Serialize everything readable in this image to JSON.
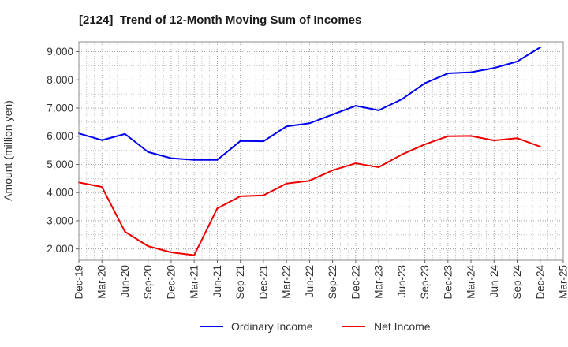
{
  "chart_data": {
    "type": "line",
    "title": "[2124]  Trend of 12-Month Moving Sum of Incomes",
    "ylabel": "Amount (million yen)",
    "categories": [
      "Dec-19",
      "Mar-20",
      "Jun-20",
      "Sep-20",
      "Dec-20",
      "Mar-21",
      "Jun-21",
      "Sep-21",
      "Dec-21",
      "Mar-22",
      "Jun-22",
      "Sep-22",
      "Dec-22",
      "Mar-23",
      "Jun-23",
      "Sep-23",
      "Dec-23",
      "Mar-24",
      "Jun-24",
      "Sep-24",
      "Dec-24",
      "Mar-25"
    ],
    "y_ticks": [
      2000,
      3000,
      4000,
      5000,
      6000,
      7000,
      8000,
      9000
    ],
    "y_tick_labels": [
      "2,000",
      "3,000",
      "4,000",
      "5,000",
      "6,000",
      "7,000",
      "8,000",
      "9,000"
    ],
    "ylim": [
      1600,
      9350
    ],
    "grid": true,
    "legend_position": "bottom-center",
    "series": [
      {
        "name": "Ordinary Income",
        "color": "#0000ee",
        "values": [
          6100,
          5860,
          6080,
          5440,
          5220,
          5160,
          5160,
          5830,
          5820,
          6350,
          6460,
          6770,
          7080,
          6920,
          7310,
          7880,
          8230,
          8270,
          8420,
          8650,
          9150,
          null
        ]
      },
      {
        "name": "Net Income",
        "color": "#ee0000",
        "values": [
          4360,
          4200,
          2610,
          2100,
          1880,
          1780,
          3440,
          3870,
          3900,
          4320,
          4420,
          4790,
          5040,
          4900,
          5350,
          5710,
          6000,
          6010,
          5850,
          5930,
          5630,
          null
        ]
      }
    ]
  }
}
